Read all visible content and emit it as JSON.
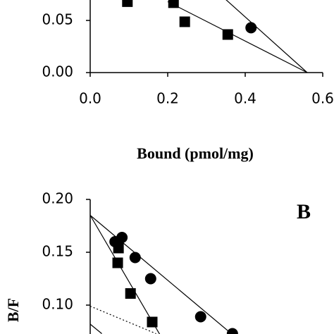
{
  "chart_data": [
    {
      "type": "scatter",
      "x_label": "Bound (pmol/mg)",
      "xlim": [
        0,
        0.6
      ],
      "ylim": [
        0,
        0.07
      ],
      "xticks": [
        {
          "value": 0,
          "label": "0.0"
        },
        {
          "value": 0.2,
          "label": "0.2"
        },
        {
          "value": 0.4,
          "label": "0.4"
        },
        {
          "value": 0.6,
          "label": "0.6"
        }
      ],
      "yticks": [
        {
          "value": 0,
          "label": "0.00"
        },
        {
          "value": 0.05,
          "label": "0.05"
        }
      ],
      "series": [
        {
          "marker": "square",
          "color": "#000000",
          "x": [
            0.096,
            0.215,
            0.244,
            0.355
          ],
          "values": [
            0.068,
            0.067,
            0.0487,
            0.0365
          ]
        },
        {
          "marker": "circle",
          "color": "#000000",
          "x": [
            0.415
          ],
          "values": [
            0.043
          ]
        }
      ],
      "fit_lines": [
        {
          "dashed": false,
          "x": [
            0.2,
            0.56
          ],
          "values": [
            0.068,
            0
          ]
        },
        {
          "dashed": false,
          "x": [
            0.35,
            0.56
          ],
          "values": [
            0.07,
            0
          ]
        }
      ]
    },
    {
      "type": "scatter",
      "y_label": "B/F",
      "panel_label": "B",
      "xlim": [
        0,
        0.6
      ],
      "ylim": [
        0.07,
        0.2
      ],
      "yticks": [
        {
          "value": 0.2,
          "label": "0.20"
        },
        {
          "value": 0.15,
          "label": "0.15"
        },
        {
          "value": 0.1,
          "label": "0.10"
        }
      ],
      "series": [
        {
          "marker": "circle",
          "color": "#000000",
          "x": [
            0.064,
            0.082,
            0.116,
            0.156,
            0.285,
            0.367
          ],
          "values": [
            0.16,
            0.164,
            0.145,
            0.125,
            0.089,
            0.073
          ]
        },
        {
          "marker": "square",
          "color": "#000000",
          "x": [
            0.073,
            0.071,
            0.104,
            0.16
          ],
          "values": [
            0.154,
            0.14,
            0.111,
            0.084
          ]
        }
      ],
      "fit_lines": [
        {
          "dashed": false,
          "x": [
            0,
            0.4
          ],
          "values": [
            0.185,
            0.062
          ]
        },
        {
          "dashed": false,
          "x": [
            0,
            0.18
          ],
          "values": [
            0.185,
            0.072
          ]
        },
        {
          "dashed": true,
          "x": [
            0,
            0.17
          ],
          "values": [
            0.099,
            0.073
          ]
        },
        {
          "dashed": false,
          "x": [
            0,
            0.03
          ],
          "values": [
            0.082,
            0.073
          ]
        }
      ]
    }
  ]
}
